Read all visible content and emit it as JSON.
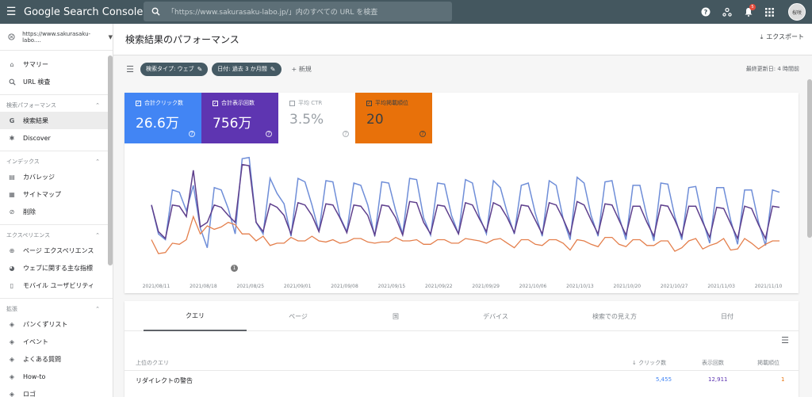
{
  "topbar": {
    "menu_icon": "menu-icon",
    "logo": "Google Search Console",
    "search_placeholder": "「https://www.sakurasaku-labo.jp/」内のすべての URL を検査",
    "notification_count": "5",
    "avatar_text": "桜咲"
  },
  "sidebar": {
    "property": "https://www.sakurasaku-labo....",
    "top_items": [
      {
        "label": "サマリー",
        "icon": "home-icon"
      },
      {
        "label": "URL 検査",
        "icon": "search-icon"
      }
    ],
    "sections": [
      {
        "title": "検索パフォーマンス",
        "items": [
          {
            "label": "検索結果",
            "icon": "google-icon",
            "active": true
          },
          {
            "label": "Discover",
            "icon": "asterisk-icon",
            "active": false
          }
        ]
      },
      {
        "title": "インデックス",
        "items": [
          {
            "label": "カバレッジ",
            "icon": "coverage-icon",
            "active": false
          },
          {
            "label": "サイトマップ",
            "icon": "sitemap-icon",
            "active": false
          },
          {
            "label": "削除",
            "icon": "remove-icon",
            "active": false
          }
        ]
      },
      {
        "title": "エクスペリエンス",
        "items": [
          {
            "label": "ページ エクスペリエンス",
            "icon": "plus-circle-icon",
            "active": false
          },
          {
            "label": "ウェブに関する主な指標",
            "icon": "speed-icon",
            "active": false
          },
          {
            "label": "モバイル ユーザビリティ",
            "icon": "phone-icon",
            "active": false
          }
        ]
      },
      {
        "title": "拡張",
        "items": [
          {
            "label": "パンくずリスト",
            "icon": "layers-icon",
            "active": false
          },
          {
            "label": "イベント",
            "icon": "layers-icon",
            "active": false
          },
          {
            "label": "よくある質問",
            "icon": "layers-icon",
            "active": false
          },
          {
            "label": "How-to",
            "icon": "layers-icon",
            "active": false
          },
          {
            "label": "ロゴ",
            "icon": "layers-icon",
            "active": false
          }
        ]
      }
    ]
  },
  "main": {
    "title": "検索結果のパフォーマンス",
    "export_label": "エクスポート",
    "filters": [
      {
        "label": "検索タイプ: ウェブ"
      },
      {
        "label": "日付: 過去 3 か月間"
      }
    ],
    "new_label": "新規",
    "updated": "最終更新日: 4 時間前",
    "metrics": {
      "clicks": {
        "label": "合計クリック数",
        "value": "26.6万"
      },
      "impressions": {
        "label": "合計表示回数",
        "value": "756万"
      },
      "ctr": {
        "label": "平均 CTR",
        "value": "3.5%"
      },
      "position": {
        "label": "平均掲載順位",
        "value": "20"
      }
    },
    "tabs": [
      "クエリ",
      "ページ",
      "国",
      "デバイス",
      "検索での見え方",
      "日付"
    ],
    "table": {
      "headers": {
        "query": "上位のクエリ",
        "clicks": "クリック数",
        "impressions": "表示回数",
        "position": "掲載順位"
      },
      "rows": [
        {
          "query": "リダイレクトの警告",
          "clicks": "5,455",
          "impressions": "12,911",
          "position": "1"
        }
      ]
    }
  },
  "chart_data": {
    "type": "line",
    "x_ticks": [
      "2021/08/11",
      "2021/08/18",
      "2021/08/25",
      "2021/09/01",
      "2021/09/08",
      "2021/09/15",
      "2021/09/22",
      "2021/09/29",
      "2021/10/06",
      "2021/10/13",
      "2021/10/20",
      "2021/10/27",
      "2021/11/03",
      "2021/11/10"
    ],
    "series": [
      {
        "name": "合計クリック数",
        "color": "#6f8ed8",
        "values": [
          55,
          30,
          25,
          68,
          66,
          50,
          72,
          35,
          18,
          70,
          68,
          52,
          30,
          95,
          96,
          40,
          30,
          78,
          65,
          56,
          28,
          78,
          75,
          55,
          32,
          76,
          75,
          45,
          32,
          74,
          72,
          55,
          28,
          75,
          74,
          50,
          30,
          78,
          77,
          44,
          29,
          74,
          73,
          46,
          30,
          77,
          74,
          45,
          30,
          76,
          70,
          48,
          30,
          72,
          74,
          48,
          28,
          76,
          72,
          43,
          25,
          79,
          74,
          46,
          28,
          75,
          76,
          45,
          25,
          72,
          72,
          45,
          24,
          74,
          73,
          45,
          25,
          70,
          71,
          42,
          22,
          70,
          70,
          42,
          21,
          68,
          68,
          40,
          20,
          68,
          66
        ]
      },
      {
        "name": "合計表示回数",
        "color": "#5e3f8c",
        "values": [
          55,
          32,
          26,
          55,
          54,
          45,
          85,
          36,
          40,
          55,
          53,
          46,
          40,
          90,
          89,
          40,
          32,
          56,
          53,
          46,
          30,
          57,
          55,
          46,
          32,
          56,
          55,
          44,
          31,
          55,
          54,
          46,
          29,
          55,
          54,
          44,
          29,
          58,
          57,
          40,
          30,
          55,
          54,
          42,
          30,
          57,
          55,
          43,
          32,
          57,
          54,
          44,
          31,
          55,
          54,
          42,
          30,
          57,
          55,
          43,
          29,
          58,
          55,
          42,
          30,
          56,
          55,
          42,
          29,
          54,
          54,
          40,
          28,
          55,
          54,
          42,
          28,
          54,
          54,
          40,
          27,
          53,
          52,
          39,
          26,
          54,
          52,
          38,
          26,
          54,
          53
        ]
      },
      {
        "name": "平均掲載順位",
        "color": "#e47f4c",
        "values": [
          25,
          13,
          14,
          22,
          21,
          25,
          45,
          30,
          37,
          34,
          36,
          40,
          38,
          30,
          30,
          24,
          28,
          20,
          22,
          22,
          27,
          24,
          24,
          28,
          24,
          23,
          25,
          22,
          23,
          26,
          26,
          23,
          22,
          23,
          23,
          27,
          24,
          24,
          25,
          21,
          21,
          25,
          25,
          22,
          22,
          26,
          25,
          24,
          22,
          25,
          26,
          22,
          18,
          25,
          25,
          21,
          20,
          25,
          25,
          22,
          16,
          25,
          24,
          21,
          19,
          27,
          27,
          21,
          19,
          25,
          25,
          20,
          20,
          24,
          24,
          15,
          18,
          24,
          26,
          17,
          20,
          22,
          26,
          16,
          17,
          26,
          22,
          17,
          21,
          24,
          24
        ]
      }
    ]
  }
}
